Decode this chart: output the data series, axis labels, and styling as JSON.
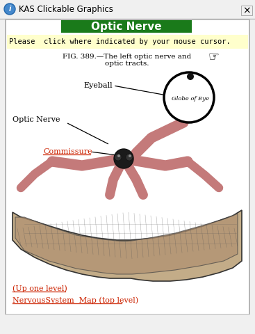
{
  "window_title": "KAS Clickable Graphics",
  "title_text": "Optic Nerve",
  "title_bg": "#1a7a1a",
  "title_fg": "#ffffff",
  "instruction_text": "Please  click where indicated by your mouse cursor.",
  "instruction_bg": "#ffffcc",
  "fig_caption_line1": "FIG. 389.—The left optic nerve and",
  "fig_caption_line2": "optic tracts.",
  "label_eyeball": "Eyeball",
  "label_optic_nerve": "Optic Nerve",
  "label_commissure": "Commissure",
  "label_globe": "Globe of Eye",
  "link1": "(Up one level)",
  "link2": "NervousSystem  Map (top level)",
  "bg_color": "#f0f0f0",
  "content_bg": "#ffffff",
  "nerve_color": "#c47a7a",
  "nerve_dark": "#a05050",
  "commissure_color": "#cc2200",
  "link_color": "#cc2200",
  "border_color": "#888888"
}
